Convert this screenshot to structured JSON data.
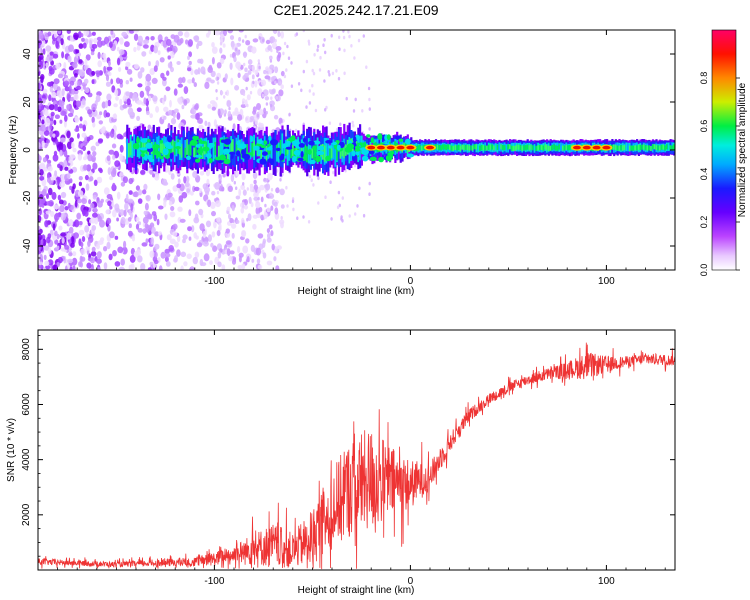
{
  "title": "C2E1.2025.242.17.21.E09",
  "chart_data": [
    {
      "type": "heatmap",
      "xlabel": "Height of straight line (km)",
      "ylabel": "Frequency (Hz)",
      "xlim": [
        -190,
        135
      ],
      "ylim": [
        -50,
        50
      ],
      "xticks": [
        -100,
        0,
        100
      ],
      "xtick_labels": [
        "-100",
        "0",
        "100"
      ],
      "yticks": [
        -40,
        -20,
        0,
        20,
        40
      ],
      "ytick_labels": [
        "-40",
        "-20",
        "0",
        "20",
        "40"
      ],
      "colorbar": {
        "label": "Normalized spectral amplitude",
        "range": [
          0,
          1
        ],
        "ticks": [
          0,
          0.2,
          0.4,
          0.6,
          0.8
        ],
        "tick_labels": [
          "0.0",
          "0.2",
          "0.4",
          "0.6",
          "0.8"
        ],
        "colormap": [
          "#ffffff",
          "#cc66ff",
          "#8800ff",
          "#1a1aff",
          "#00ccff",
          "#00ee44",
          "#ccee00",
          "#ff8800",
          "#ff0000",
          "#ff0066"
        ]
      },
      "features": {
        "noise_region_x": [
          -190,
          -100
        ],
        "signal_band_center_hz": [
          [
            -140,
            0.5
          ],
          [
            -100,
            0
          ],
          [
            -60,
            0
          ],
          [
            -40,
            -1
          ],
          [
            -30,
            1
          ],
          [
            -20,
            1
          ],
          [
            0,
            1
          ],
          [
            20,
            1
          ],
          [
            60,
            1
          ],
          [
            100,
            1
          ],
          [
            135,
            1
          ]
        ],
        "hot_spots_x": [
          -20,
          -15,
          -10,
          -5,
          0,
          10,
          85,
          90,
          95,
          100
        ]
      }
    },
    {
      "type": "line",
      "xlabel": "Height of straight line (km)",
      "ylabel": "SNR (10 * v/v)",
      "xlim": [
        -190,
        135
      ],
      "ylim": [
        0,
        8700
      ],
      "xticks": [
        -100,
        0,
        100
      ],
      "xtick_labels": [
        "-100",
        "0",
        "100"
      ],
      "yticks": [
        2000,
        4000,
        6000,
        8000
      ],
      "ytick_labels": [
        "2000",
        "4000",
        "6000",
        "8000"
      ],
      "color": "#ee3333",
      "series": [
        {
          "name": "SNR",
          "x": [
            -190,
            -170,
            -150,
            -130,
            -110,
            -100,
            -90,
            -80,
            -70,
            -60,
            -50,
            -40,
            -30,
            -20,
            -10,
            0,
            10,
            20,
            30,
            40,
            50,
            60,
            70,
            80,
            90,
            100,
            110,
            120,
            135
          ],
          "y": [
            300,
            250,
            200,
            250,
            300,
            400,
            550,
            750,
            900,
            700,
            1200,
            2200,
            3000,
            3300,
            3200,
            3100,
            3400,
            4600,
            5600,
            6200,
            6600,
            6900,
            7100,
            7250,
            7400,
            7450,
            7550,
            7650,
            7600
          ],
          "spread": [
            120,
            100,
            100,
            120,
            180,
            250,
            350,
            600,
            800,
            650,
            1000,
            1500,
            1800,
            1900,
            1300,
            900,
            500,
            350,
            250,
            200,
            200,
            200,
            220,
            300,
            500,
            300,
            200,
            200,
            200
          ]
        }
      ]
    }
  ]
}
